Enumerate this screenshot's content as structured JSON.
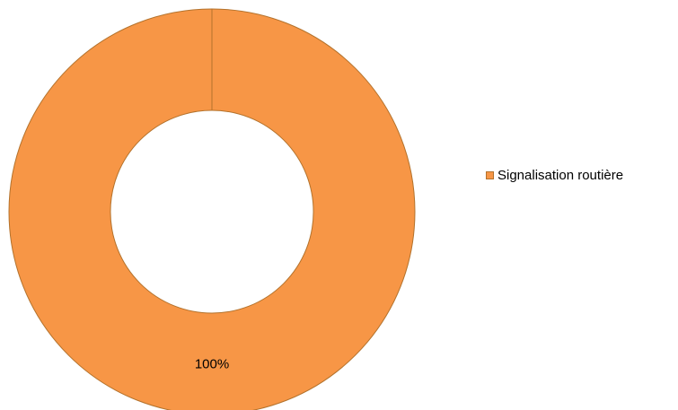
{
  "chart_data": {
    "type": "pie",
    "donut": true,
    "categories": [
      "Signalisation routière"
    ],
    "values": [
      100
    ],
    "data_labels": [
      "100%"
    ],
    "colors": [
      "#f79646"
    ],
    "border_color": "#b3722c",
    "legend": {
      "position": "right",
      "entries": [
        "Signalisation routière"
      ]
    }
  }
}
